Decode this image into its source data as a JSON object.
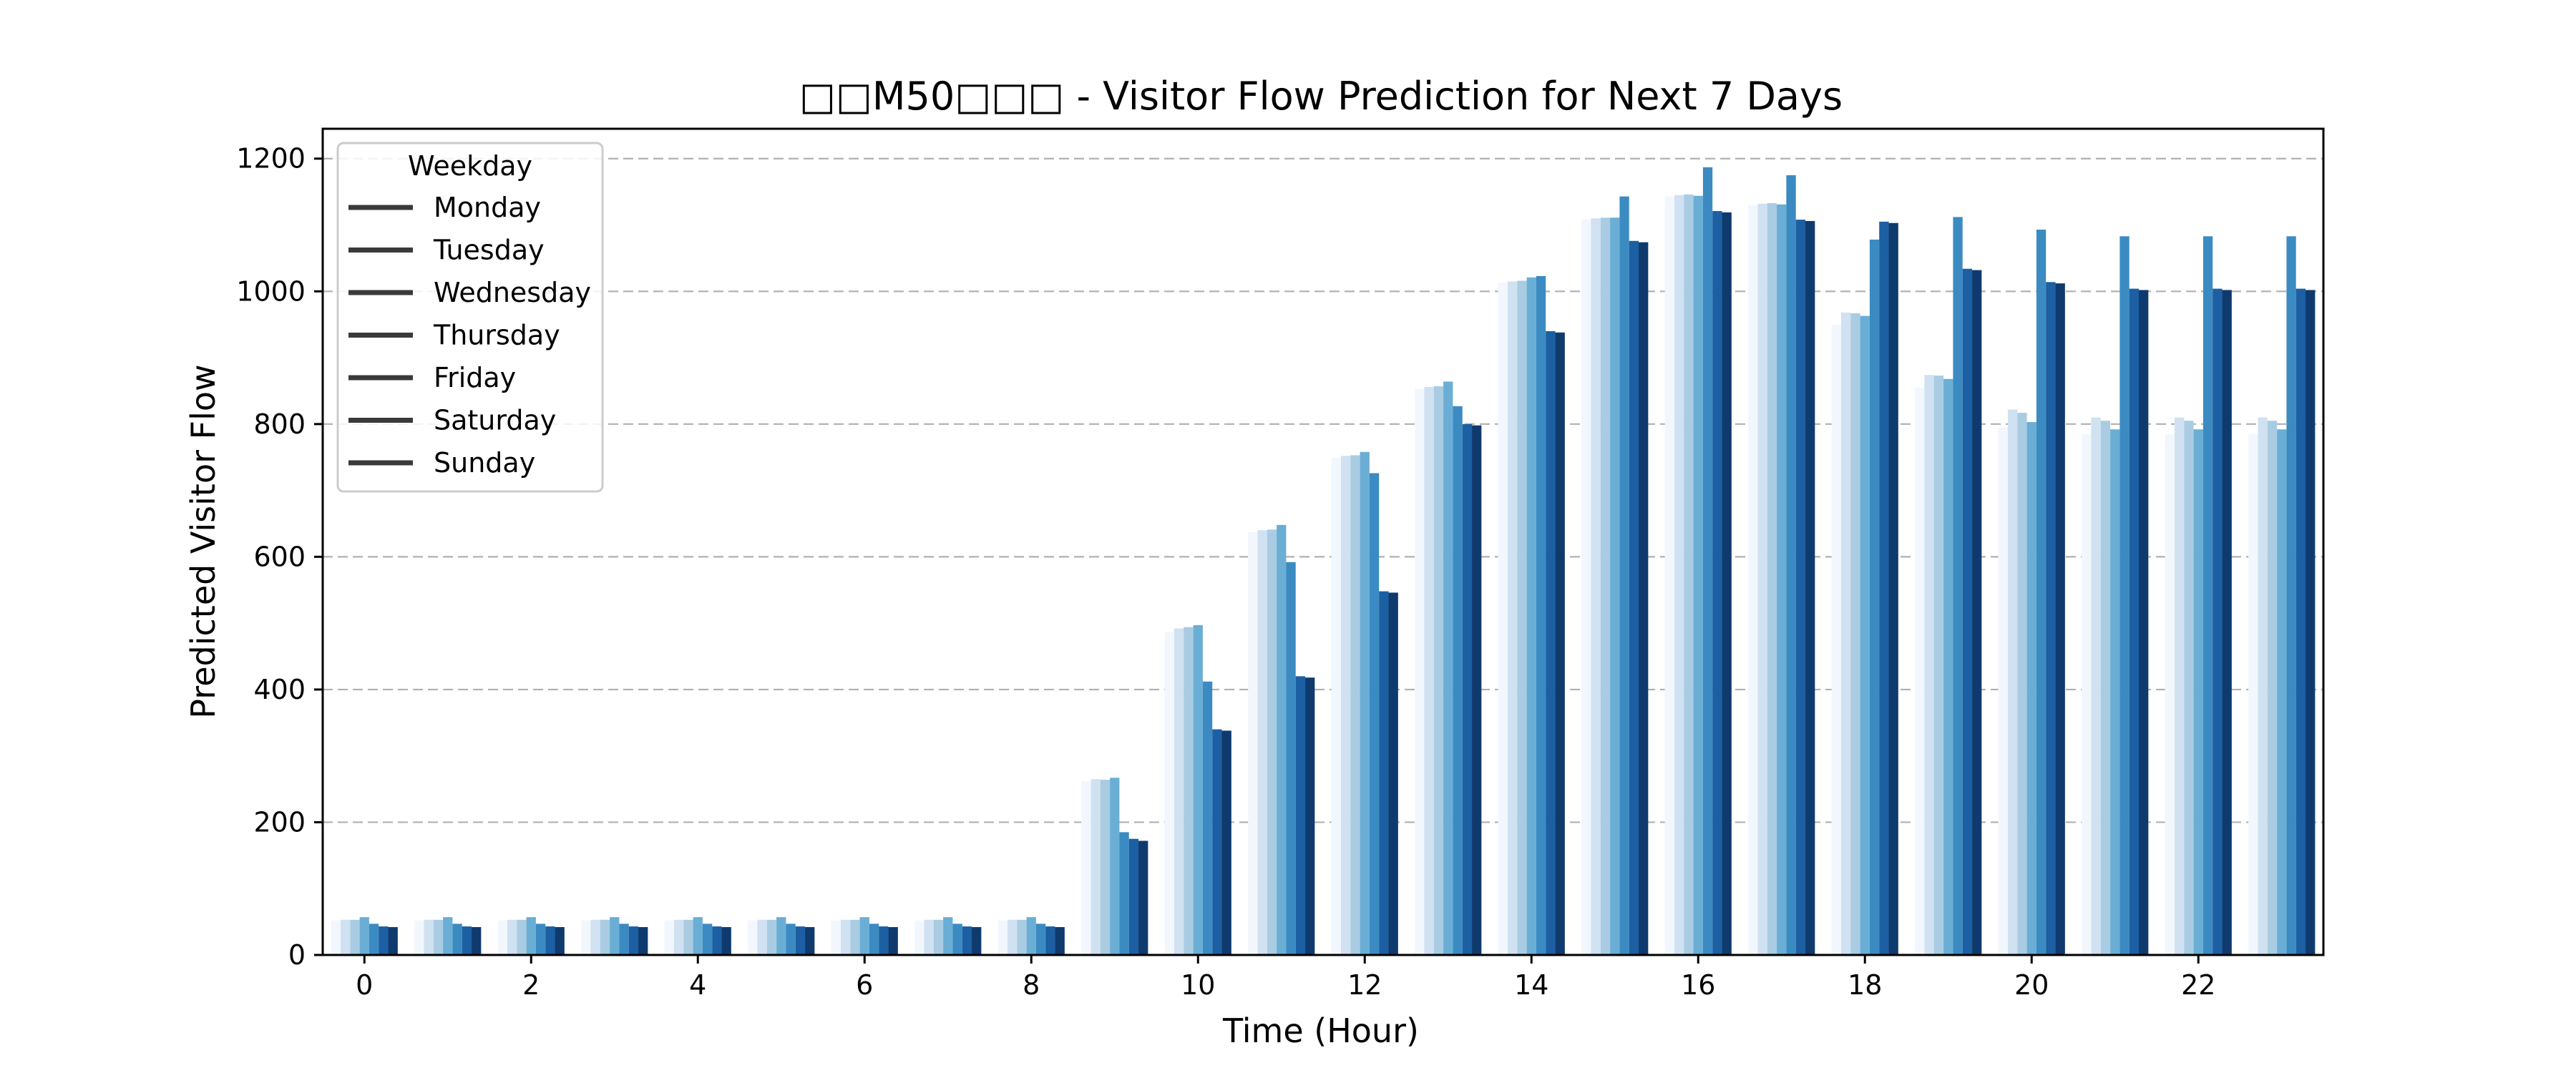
{
  "chart_data": {
    "type": "bar",
    "title": "□□M50□□□ - Visitor Flow Prediction for Next 7 Days",
    "xlabel": "Time (Hour)",
    "ylabel": "Predicted Visitor Flow",
    "ylim": [
      0,
      1245
    ],
    "yticks": [
      0,
      200,
      400,
      600,
      800,
      1000,
      1200
    ],
    "xticks": [
      0,
      2,
      4,
      6,
      8,
      10,
      12,
      14,
      16,
      18,
      20,
      22
    ],
    "grid": "y-dashed",
    "legend_title": "Weekday",
    "legend_position": "top-left",
    "legend_marker_color": "#3a3a3a",
    "categories": [
      0,
      1,
      2,
      3,
      4,
      5,
      6,
      7,
      8,
      9,
      10,
      11,
      12,
      13,
      14,
      15,
      16,
      17,
      18,
      19,
      20,
      21,
      22,
      23
    ],
    "series": [
      {
        "name": "Monday",
        "color": "#f2f7fd",
        "values": [
          52,
          52,
          52,
          52,
          52,
          52,
          52,
          52,
          52,
          262,
          487,
          637,
          749,
          853,
          1013,
          1108,
          1143,
          1130,
          950,
          855,
          795,
          785,
          785,
          785
        ]
      },
      {
        "name": "Tuesday",
        "color": "#d0e1f2",
        "values": [
          53,
          53,
          53,
          53,
          53,
          53,
          53,
          53,
          53,
          265,
          492,
          640,
          752,
          856,
          1015,
          1110,
          1145,
          1132,
          968,
          874,
          822,
          810,
          810,
          810
        ]
      },
      {
        "name": "Wednesday",
        "color": "#a9cce2",
        "values": [
          53,
          53,
          53,
          53,
          53,
          53,
          53,
          53,
          53,
          264,
          494,
          641,
          753,
          857,
          1016,
          1111,
          1146,
          1133,
          967,
          873,
          817,
          805,
          805,
          805
        ]
      },
      {
        "name": "Thursday",
        "color": "#6aaed6",
        "values": [
          57,
          57,
          57,
          57,
          57,
          57,
          57,
          57,
          57,
          267,
          497,
          648,
          758,
          864,
          1021,
          1111,
          1144,
          1131,
          963,
          868,
          803,
          792,
          792,
          792
        ]
      },
      {
        "name": "Friday",
        "color": "#3b8bc2",
        "values": [
          47,
          47,
          47,
          47,
          47,
          47,
          47,
          47,
          47,
          185,
          412,
          592,
          726,
          827,
          1023,
          1143,
          1187,
          1175,
          1078,
          1112,
          1093,
          1083,
          1083,
          1083
        ]
      },
      {
        "name": "Saturday",
        "color": "#1c5fa2",
        "values": [
          43,
          43,
          43,
          43,
          43,
          43,
          43,
          43,
          43,
          175,
          340,
          420,
          548,
          800,
          940,
          1076,
          1121,
          1108,
          1105,
          1034,
          1014,
          1004,
          1004,
          1004
        ]
      },
      {
        "name": "Sunday",
        "color": "#0f3a6e",
        "values": [
          42,
          42,
          42,
          42,
          42,
          42,
          42,
          42,
          42,
          172,
          338,
          418,
          546,
          798,
          938,
          1074,
          1119,
          1106,
          1103,
          1032,
          1012,
          1002,
          1002,
          1002
        ]
      }
    ]
  }
}
